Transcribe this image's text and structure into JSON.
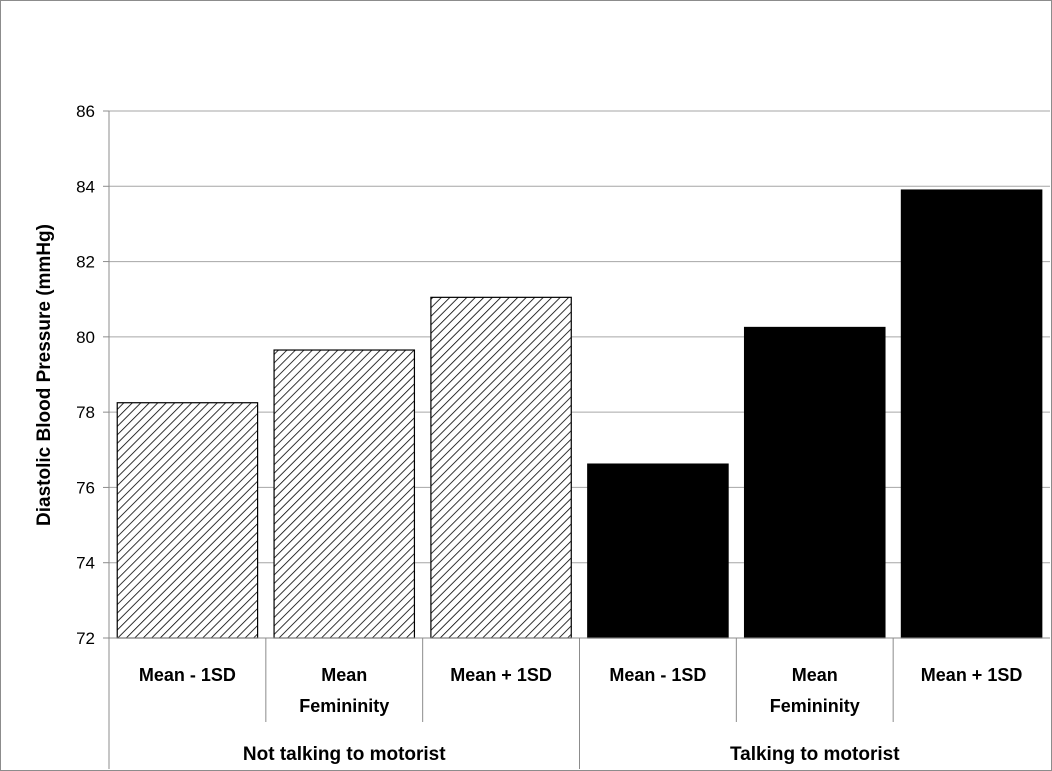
{
  "chart_data": {
    "type": "bar",
    "title": "",
    "ylabel": "Diastolic Blood Pressure (mmHg)",
    "xlabel": "",
    "ylim": [
      72,
      86
    ],
    "yticks": [
      72,
      74,
      76,
      78,
      80,
      82,
      84,
      86
    ],
    "grid": true,
    "groups": [
      {
        "label": "Not talking to motorist",
        "fill": "hatched",
        "bars": [
          {
            "category": [
              "Mean - 1SD"
            ],
            "value": 78.25
          },
          {
            "category": [
              "Mean",
              "Femininity"
            ],
            "value": 79.65
          },
          {
            "category": [
              "Mean + 1SD"
            ],
            "value": 81.05
          }
        ]
      },
      {
        "label": "Talking to motorist",
        "fill": "solid",
        "bars": [
          {
            "category": [
              "Mean - 1SD"
            ],
            "value": 76.62
          },
          {
            "category": [
              "Mean",
              "Femininity"
            ],
            "value": 80.25
          },
          {
            "category": [
              "Mean + 1SD"
            ],
            "value": 83.9
          }
        ]
      }
    ],
    "colors": {
      "solid": "#000000",
      "hatch_line": "#000000",
      "hatch_bg": "#ffffff",
      "grid": "#a6a6a6",
      "axis": "#8c8c8c"
    }
  }
}
